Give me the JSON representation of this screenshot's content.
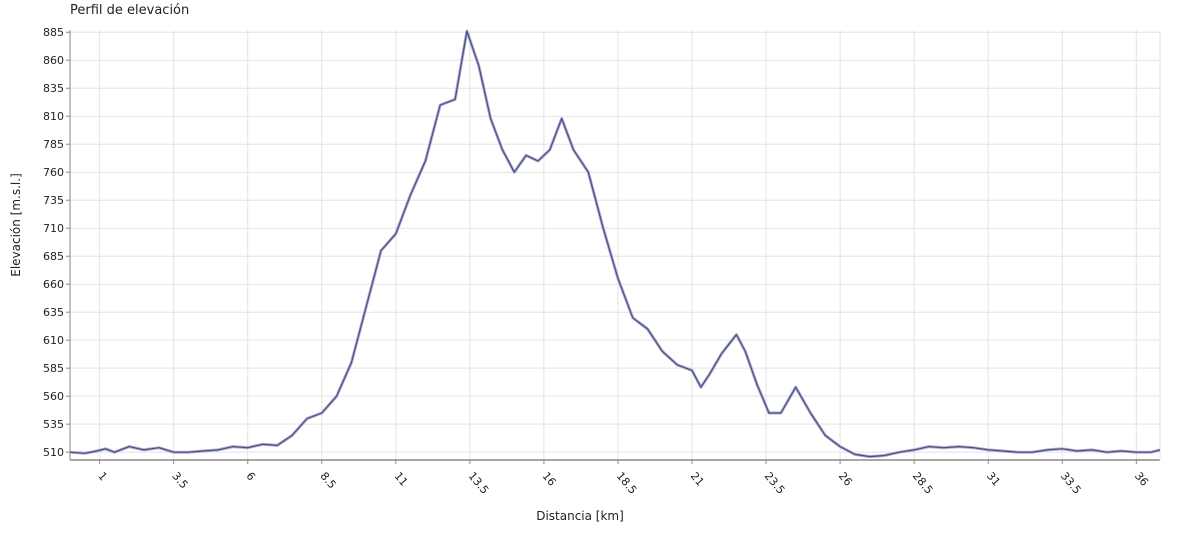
{
  "chart_data": {
    "type": "line",
    "title": "Perfil de elevación",
    "xlabel": "Distancia [km]",
    "ylabel": "Elevación [m.s.l.]",
    "xlim": [
      0,
      36.8
    ],
    "ylim": [
      503,
      887
    ],
    "x_ticks": [
      1,
      3.5,
      6,
      8.5,
      11,
      13.5,
      16,
      18.5,
      21,
      23.5,
      26,
      28.5,
      31,
      33.5,
      36
    ],
    "x_tick_labels": [
      "1",
      "3.5",
      "6",
      "8.5",
      "11",
      "13.5",
      "16",
      "18.5",
      "21",
      "23.5",
      "26",
      "28.5",
      "31",
      "33.5",
      "36"
    ],
    "y_ticks": [
      510,
      535,
      560,
      585,
      610,
      635,
      660,
      685,
      710,
      735,
      760,
      785,
      810,
      835,
      860,
      885
    ],
    "y_tick_labels": [
      "510",
      "535",
      "560",
      "585",
      "610",
      "635",
      "660",
      "685",
      "710",
      "735",
      "760",
      "785",
      "810",
      "835",
      "860",
      "885"
    ],
    "grid": true,
    "line_color": "#4b4f7a",
    "shadow_color": "#a9acd6",
    "grid_color": "#e3e3e3",
    "axis_color": "#888888",
    "series": [
      {
        "x": [
          0,
          0.5,
          0.9,
          1.2,
          1.5,
          2,
          2.5,
          3,
          3.5,
          4,
          4.5,
          5,
          5.5,
          6,
          6.5,
          7,
          7.5,
          8,
          8.5,
          9,
          9.5,
          10,
          10.5,
          11,
          11.5,
          12,
          12.5,
          13,
          13.4,
          13.8,
          14.2,
          14.6,
          15,
          15.4,
          15.8,
          16.2,
          16.6,
          17,
          17.5,
          18,
          18.5,
          19,
          19.5,
          20,
          20.5,
          21,
          21.3,
          21.6,
          22,
          22.5,
          22.8,
          23.2,
          23.6,
          24,
          24.5,
          25,
          25.5,
          26,
          26.5,
          27,
          27.5,
          28,
          28.5,
          29,
          29.5,
          30,
          30.5,
          31,
          31.5,
          32,
          32.5,
          33,
          33.5,
          34,
          34.5,
          35,
          35.5,
          36,
          36.5,
          36.8
        ],
        "y": [
          510,
          509,
          511,
          513,
          510,
          515,
          512,
          514,
          510,
          510,
          511,
          512,
          515,
          514,
          517,
          516,
          525,
          540,
          545,
          560,
          590,
          640,
          690,
          705,
          740,
          770,
          820,
          825,
          886,
          855,
          808,
          780,
          760,
          775,
          770,
          780,
          808,
          780,
          760,
          710,
          665,
          630,
          620,
          600,
          588,
          583,
          568,
          580,
          598,
          615,
          600,
          570,
          545,
          545,
          568,
          545,
          525,
          515,
          508,
          506,
          507,
          510,
          512,
          515,
          514,
          515,
          514,
          512,
          511,
          510,
          510,
          512,
          513,
          511,
          512,
          510,
          511,
          510,
          510,
          512
        ]
      }
    ]
  }
}
